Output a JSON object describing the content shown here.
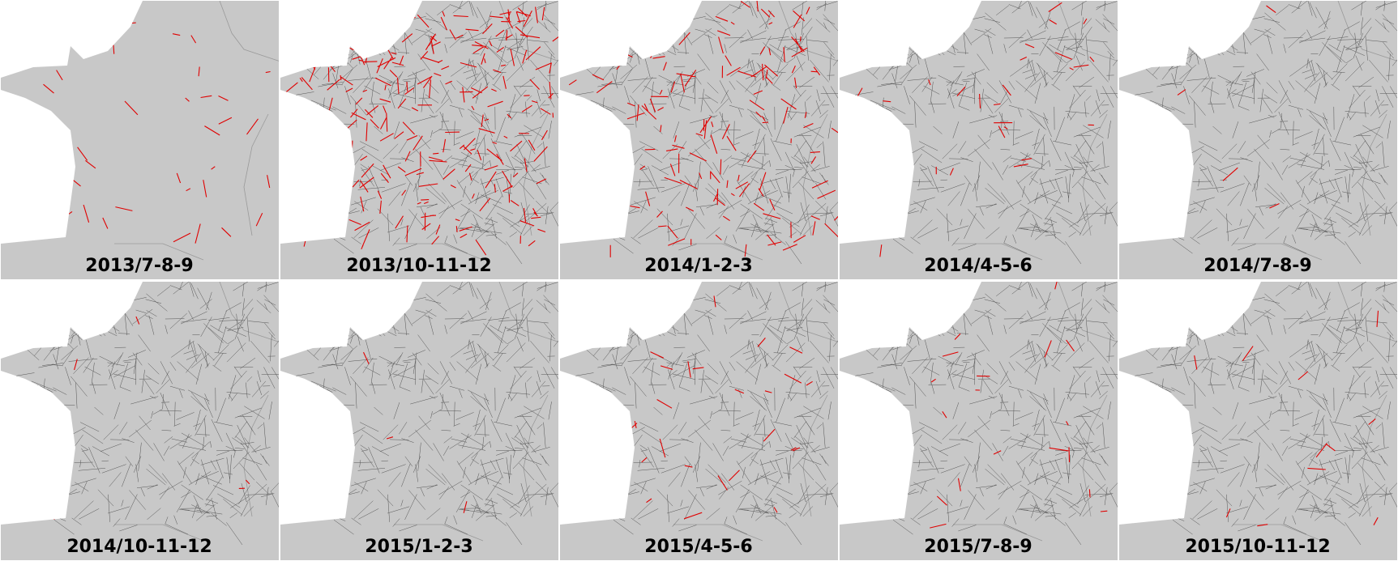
{
  "panels": [
    {
      "label": "2013/7-8-9"
    },
    {
      "label": "2013/10-11-12"
    },
    {
      "label": "2014/1-2-3"
    },
    {
      "label": "2014/4-5-6"
    },
    {
      "label": "2014/7-8-9"
    },
    {
      "label": "2014/10-11-12"
    },
    {
      "label": "2015/1-2-3"
    },
    {
      "label": "2015/4-5-6"
    },
    {
      "label": "2015/7-8-9"
    },
    {
      "label": "2015/10-11-12"
    }
  ]
}
